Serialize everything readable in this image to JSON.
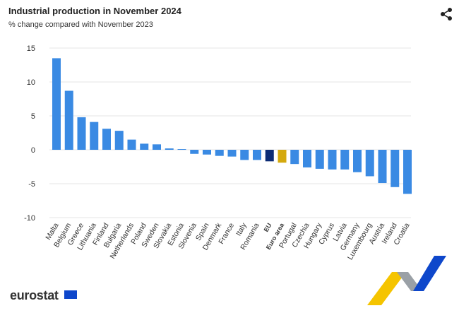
{
  "header": {
    "title": "Industrial production in November 2024",
    "subtitle": "% change compared with November 2023"
  },
  "footer": {
    "logo": "eurostat"
  },
  "colors": {
    "country": "#3a8ae3",
    "eu": "#0b2b74",
    "euro_area": "#d4a90e",
    "grid": "#e6e6e6"
  },
  "chart_data": {
    "type": "bar",
    "title": "Industrial production in November 2024",
    "subtitle": "% change compared with November 2023",
    "ylim": [
      -10,
      15
    ],
    "yticks": [
      15,
      10,
      5,
      0,
      -5,
      -10
    ],
    "grid": true,
    "categories": [
      "Malta",
      "Belgium",
      "Greece",
      "Lithuania",
      "Finland",
      "Bulgaria",
      "Netherlands",
      "Poland",
      "Sweden",
      "Slovakia",
      "Estonia",
      "Slovenia",
      "Spain",
      "Denmark",
      "France",
      "Italy",
      "Romania",
      "EU",
      "Euro area",
      "Portugal",
      "Czechia",
      "Hungary",
      "Cyprus",
      "Latvia",
      "Germany",
      "Luxembourg",
      "Austria",
      "Ireland",
      "Croatia"
    ],
    "values": [
      13.5,
      8.7,
      4.8,
      4.1,
      3.1,
      2.8,
      1.5,
      0.9,
      0.8,
      0.2,
      0.1,
      -0.6,
      -0.7,
      -0.9,
      -1.0,
      -1.5,
      -1.5,
      -1.7,
      -1.9,
      -2.1,
      -2.6,
      -2.8,
      -2.9,
      -2.9,
      -3.3,
      -3.9,
      -4.9,
      -5.5,
      -6.5
    ]
  }
}
